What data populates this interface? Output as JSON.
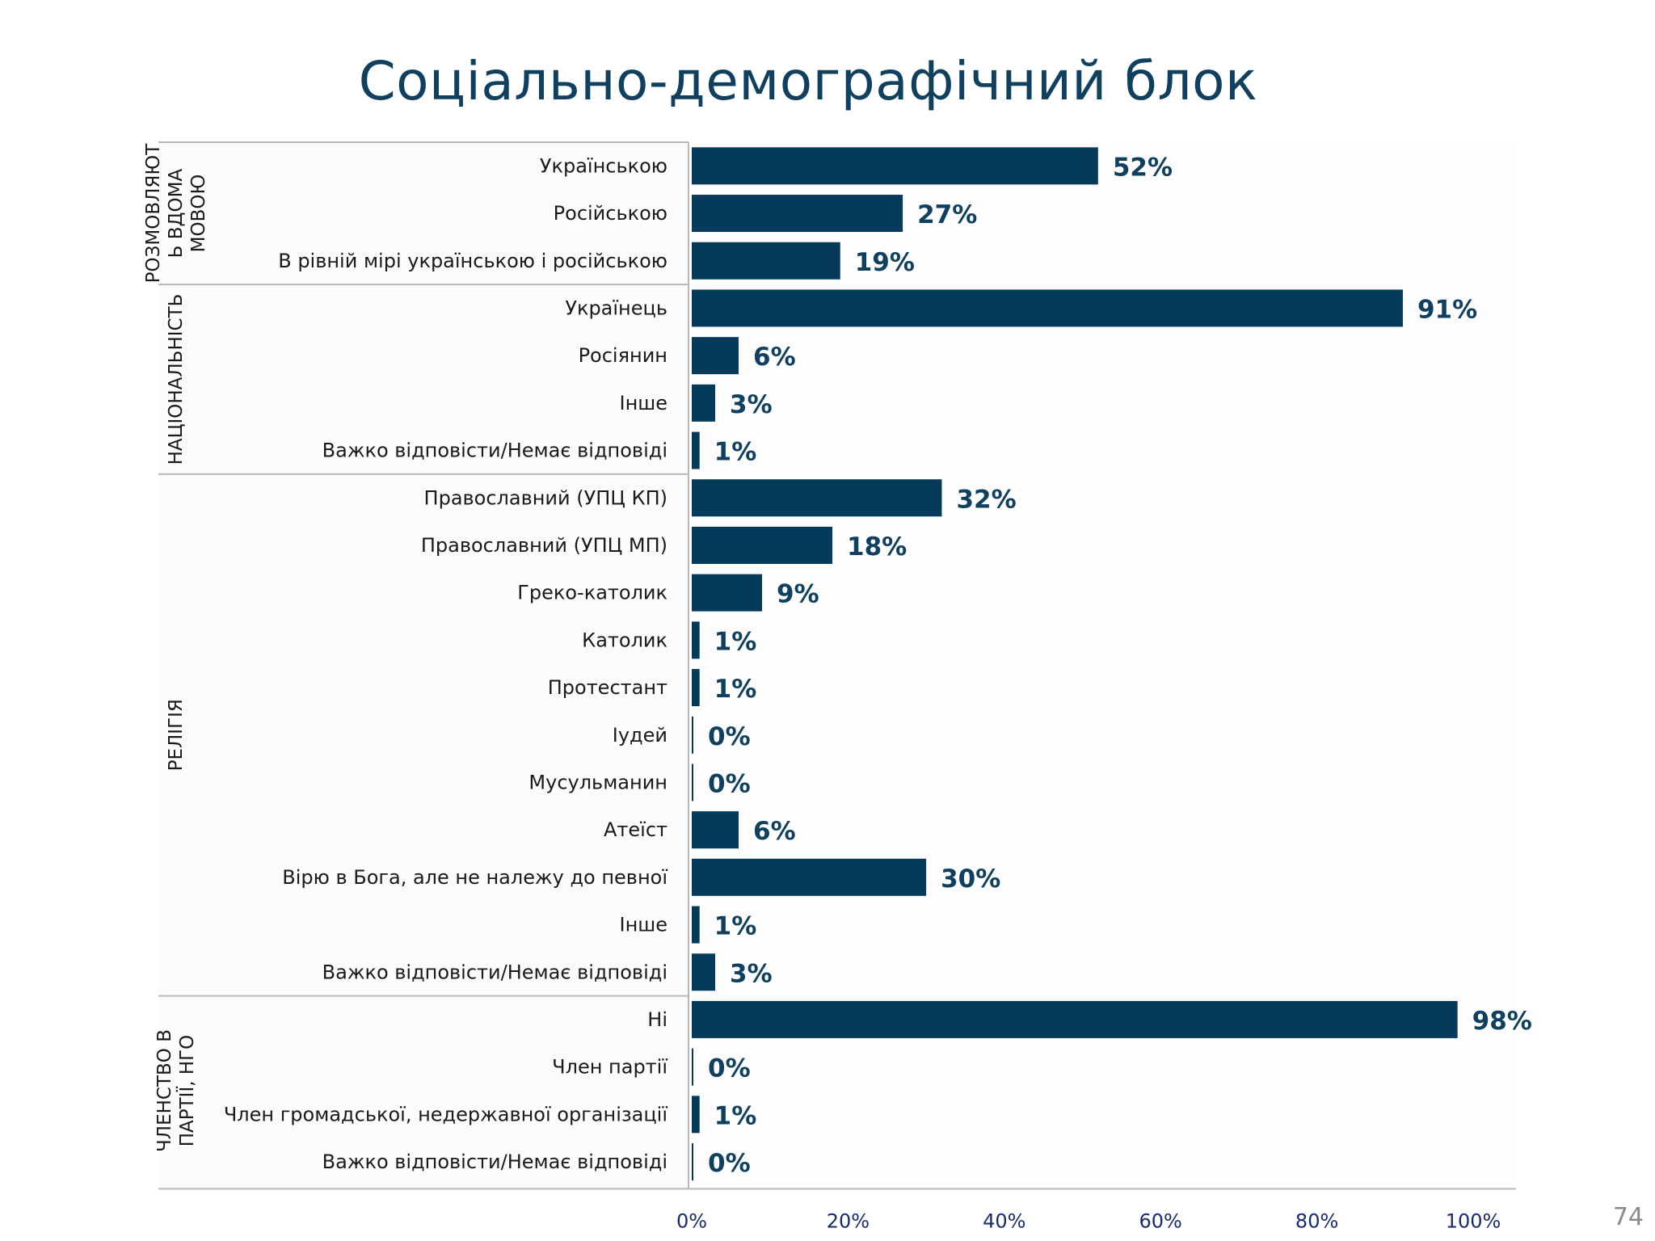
{
  "title": "Соціально-демографічний блок",
  "page_number": "74",
  "colors": {
    "bar": "#053a5a",
    "value_label": "#10405f",
    "title": "#10405f",
    "tick": "#1a2a6c",
    "separator": "#b8b8b8"
  },
  "chart_data": {
    "type": "bar",
    "orientation": "horizontal",
    "title": "Соціально-демографічний блок",
    "xlim": [
      0,
      100
    ],
    "xticks": [
      "0%",
      "20%",
      "40%",
      "60%",
      "80%",
      "100%"
    ],
    "grid": false,
    "legend": "none",
    "groups": [
      {
        "label_lines": [
          "РОЗМОВЛЯЮТ",
          "Ь ВДОМА",
          "МОВОЮ"
        ],
        "categories": [
          "Українською",
          "Російською",
          "В рівній мірі українською і російською"
        ],
        "values": [
          52,
          27,
          19
        ],
        "labels": [
          "52%",
          "27%",
          "19%"
        ]
      },
      {
        "label_lines": [
          "НАЦІОНАЛЬНІСТЬ"
        ],
        "categories": [
          "Українець",
          "Росіянин",
          "Інше",
          "Важко відповісти/Немає відповіді"
        ],
        "values": [
          91,
          6,
          3,
          1
        ],
        "labels": [
          "91%",
          "6%",
          "3%",
          "1%"
        ]
      },
      {
        "label_lines": [
          "РЕЛІГІЯ"
        ],
        "categories": [
          "Православний (УПЦ КП)",
          "Православний (УПЦ МП)",
          "Греко-католик",
          "Католик",
          "Протестант",
          "Іудей",
          "Мусульманин",
          "Атеїст",
          "Вірю в Бога, але не належу до певної",
          "Інше",
          "Важко відповісти/Немає відповіді"
        ],
        "values": [
          32,
          18,
          9,
          1,
          1,
          0,
          0,
          6,
          30,
          1,
          3
        ],
        "labels": [
          "32%",
          "18%",
          "9%",
          "1%",
          "1%",
          "0%",
          "0%",
          "6%",
          "30%",
          "1%",
          "3%"
        ]
      },
      {
        "label_lines": [
          "ЧЛЕНСТВО В",
          "ПАРТІЇ, НГО"
        ],
        "categories": [
          "Ні",
          "Член партії",
          "Член громадської, недержавної організації",
          "Важко відповісти/Немає відповіді"
        ],
        "values": [
          98,
          0,
          1,
          0
        ],
        "labels": [
          "98%",
          "0%",
          "1%",
          "0%"
        ]
      }
    ]
  }
}
